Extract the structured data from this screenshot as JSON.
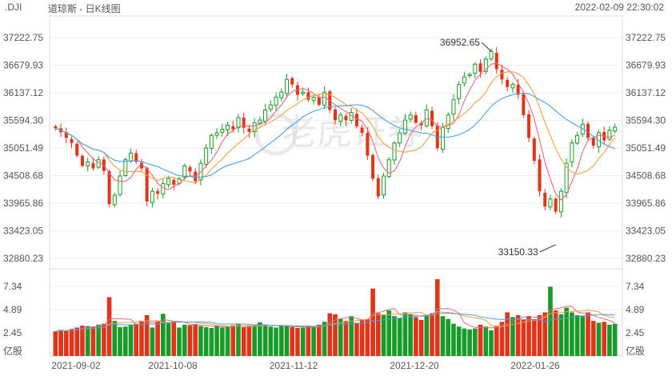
{
  "header": {
    "symbol": ".DJI",
    "name": "道琼斯 - 日K线图",
    "timestamp": "2022-02-09 22:30:02"
  },
  "watermark": "老虎证券",
  "chart_data": [
    {
      "type": "candlestick",
      "price_ticks": [
        "37222.75",
        "36679.93",
        "36137.12",
        "35594.30",
        "35051.49",
        "34508.68",
        "33965.86",
        "33423.05",
        "32880.23"
      ],
      "ylim": [
        32880.23,
        37222.75
      ],
      "x_labels": [
        "2021-09-02",
        "2021-10-08",
        "2021-11-12",
        "2021-12-20",
        "2022-01-26"
      ],
      "annotations": [
        {
          "text": "36952.65",
          "kind": "high"
        },
        {
          "text": "33150.33",
          "kind": "low"
        }
      ],
      "colors": {
        "up": "#1a9a2a",
        "down": "#e23418",
        "ma5": "#e8687a",
        "ma10": "#f0a040",
        "ma20": "#4aa0e0"
      },
      "closes": [
        35440,
        35360,
        35250,
        35150,
        34900,
        34700,
        34780,
        34650,
        34820,
        34600,
        33950,
        34120,
        34500,
        34820,
        34950,
        34780,
        34650,
        34000,
        34200,
        34150,
        34350,
        34450,
        34330,
        34450,
        34700,
        34590,
        34400,
        34750,
        35050,
        35300,
        35350,
        35420,
        35500,
        35420,
        35650,
        35450,
        35370,
        35550,
        35600,
        35800,
        35900,
        36050,
        36150,
        36400,
        36300,
        36100,
        36150,
        36000,
        36050,
        35900,
        36150,
        35800,
        35600,
        35700,
        35600,
        35750,
        35480,
        35350,
        34900,
        34450,
        34100,
        34500,
        34820,
        35150,
        35350,
        35600,
        35700,
        35550,
        35500,
        35800,
        35480,
        35050,
        35450,
        35700,
        36000,
        36300,
        36450,
        36500,
        36700,
        36550,
        36800,
        36950,
        36600,
        36400,
        36250,
        36300,
        36100,
        35700,
        35250,
        34800,
        34200,
        33900,
        34050,
        33800,
        34200,
        34750,
        35150,
        35300,
        35520,
        35250,
        35100,
        35350,
        35200,
        35400,
        35460
      ],
      "volumes": [
        2.6,
        2.75,
        2.65,
        2.85,
        3.0,
        3.2,
        3.15,
        3.1,
        3.3,
        3.4,
        6.2,
        3.7,
        3.05,
        3.1,
        3.3,
        3.4,
        3.7,
        4.3,
        3.0,
        3.65,
        4.45,
        3.45,
        3.7,
        3.0,
        3.3,
        3.25,
        3.35,
        3.15,
        3.05,
        2.95,
        3.2,
        3.0,
        3.15,
        3.25,
        3.4,
        3.05,
        3.1,
        3.2,
        3.55,
        3.3,
        3.1,
        3.0,
        3.25,
        3.15,
        3.05,
        2.95,
        3.0,
        3.2,
        3.1,
        3.3,
        3.6,
        4.5,
        4.4,
        3.9,
        3.7,
        4.2,
        3.5,
        3.8,
        3.9,
        7.1,
        4.5,
        4.3,
        4.8,
        4.2,
        4.0,
        4.6,
        4.4,
        4.1,
        3.8,
        4.3,
        4.5,
        8.1,
        4.2,
        3.9,
        3.4,
        3.1,
        2.9,
        2.8,
        2.9,
        3.3,
        3.1,
        2.7,
        3.2,
        3.6,
        4.6,
        4.1,
        4.3,
        3.8,
        4.2,
        3.9,
        4.3,
        4.6,
        7.3,
        4.8,
        4.4,
        5.1,
        4.6,
        4.3,
        4.2,
        4.6,
        3.7,
        3.5,
        3.6,
        3.3,
        3.4
      ],
      "volume_ticks": [
        "7.34",
        "4.89",
        "2.45"
      ],
      "volume_unit": "亿股"
    }
  ]
}
